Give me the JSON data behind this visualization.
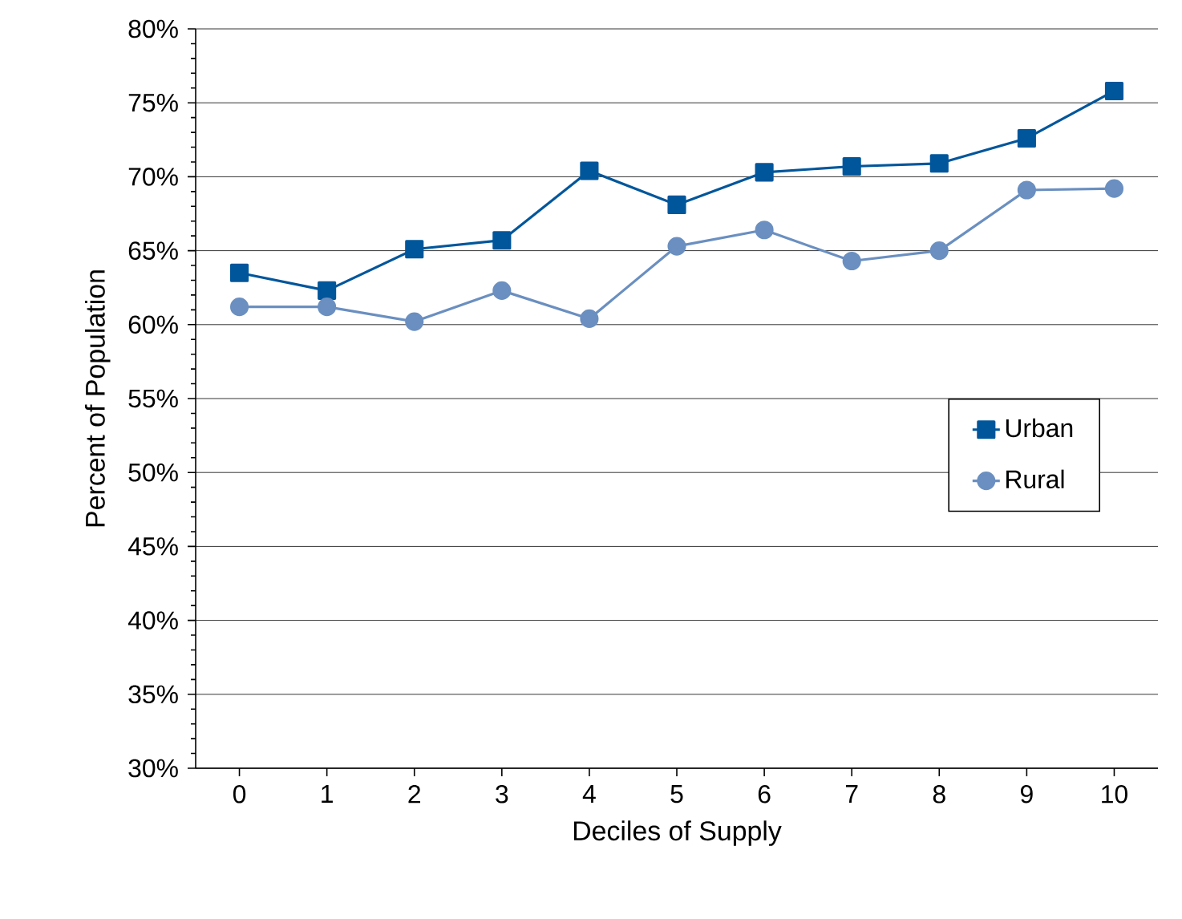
{
  "chart_data": {
    "type": "line",
    "xlabel": "Deciles of Supply",
    "ylabel": "Percent of Population",
    "x": [
      0,
      1,
      2,
      3,
      4,
      5,
      6,
      7,
      8,
      9,
      10
    ],
    "series": [
      {
        "name": "Urban",
        "color": "#00569b",
        "marker": "square",
        "values": [
          63.5,
          62.3,
          65.1,
          65.7,
          70.4,
          68.1,
          70.3,
          70.7,
          70.9,
          72.6,
          75.8
        ]
      },
      {
        "name": "Rural",
        "color": "#6a8fc0",
        "marker": "circle",
        "values": [
          61.2,
          61.2,
          60.2,
          62.3,
          60.4,
          65.3,
          66.4,
          64.3,
          65.0,
          69.1,
          69.2
        ]
      }
    ],
    "xlim": [
      -0.5,
      10.5
    ],
    "xticks": [
      0,
      1,
      2,
      3,
      4,
      5,
      6,
      7,
      8,
      9,
      10
    ],
    "ylim": [
      30,
      80
    ],
    "yticks": [
      {
        "value": 30,
        "label": "30%"
      },
      {
        "value": 35,
        "label": "35%"
      },
      {
        "value": 40,
        "label": "40%"
      },
      {
        "value": 45,
        "label": "45%"
      },
      {
        "value": 50,
        "label": "50%"
      },
      {
        "value": 55,
        "label": "55%"
      },
      {
        "value": 60,
        "label": "60%"
      },
      {
        "value": 65,
        "label": "65%"
      },
      {
        "value": 70,
        "label": "70%"
      },
      {
        "value": 75,
        "label": "75%"
      },
      {
        "value": 80,
        "label": "80%"
      }
    ],
    "grid": "y",
    "legend": "right",
    "line_style": "solid"
  }
}
